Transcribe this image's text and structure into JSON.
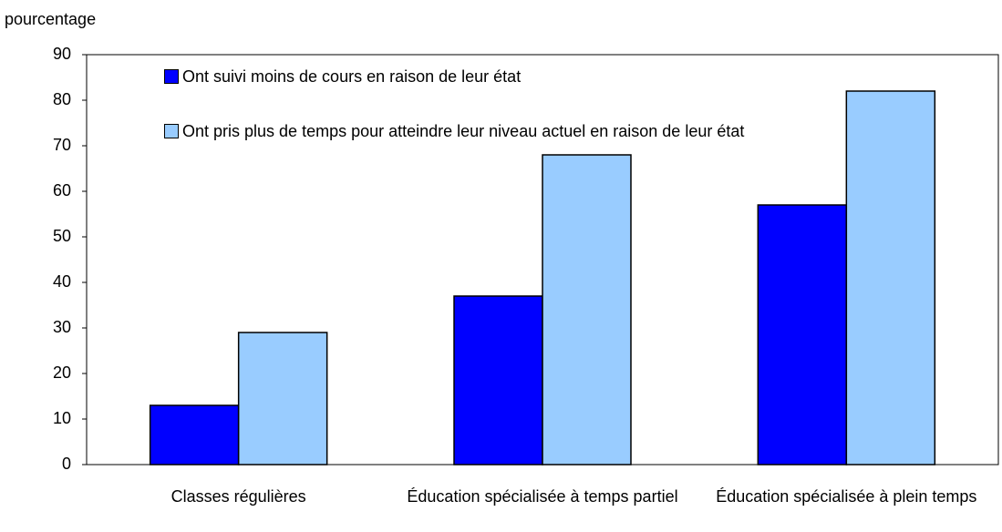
{
  "chart_data": {
    "type": "bar",
    "ylabel": "pourcentage",
    "categories": [
      "Classes régulières",
      "Éducation spécialisée à temps partiel",
      "Éducation spécialisée à plein temps"
    ],
    "series": [
      {
        "name": "Ont suivi moins de cours en raison de leur état",
        "color": "#0000ff",
        "values": [
          13,
          37,
          57
        ]
      },
      {
        "name": "Ont pris plus de temps pour atteindre leur niveau actuel en raison de leur état",
        "color": "#99ccff",
        "values": [
          29,
          68,
          82
        ]
      }
    ],
    "ylim": [
      0,
      90
    ],
    "yticks": [
      0,
      10,
      20,
      30,
      40,
      50,
      60,
      70,
      80,
      90
    ],
    "grid": false,
    "legend": "top-left"
  }
}
